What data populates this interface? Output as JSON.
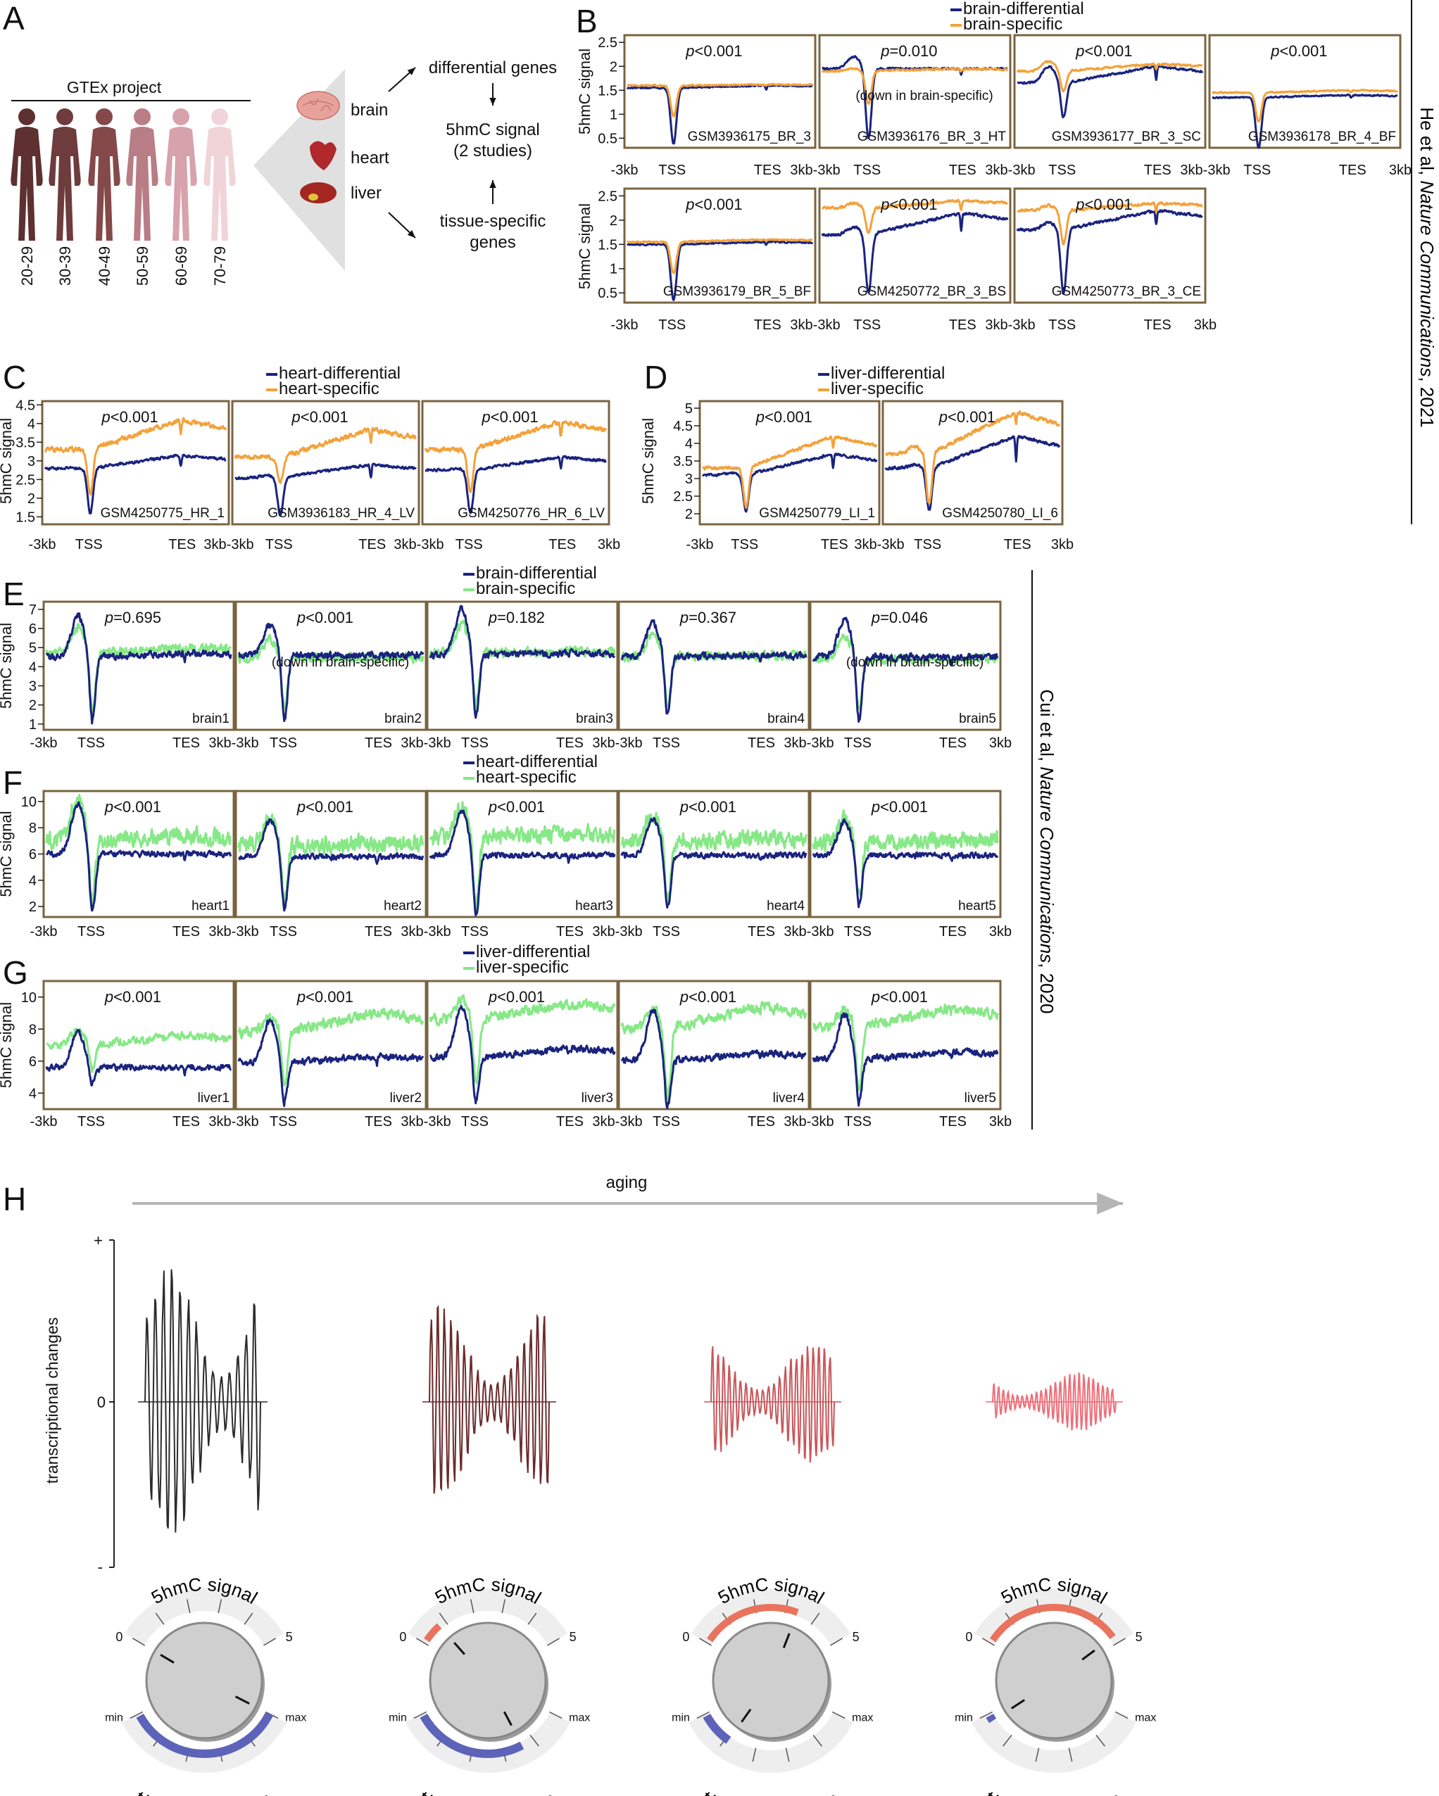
{
  "colors": {
    "panel_border": "#7a6440",
    "blue": "#1a237e",
    "orange": "#f4a13a",
    "green": "#86e886",
    "arrow_gray": "#b5b5b5",
    "dial_gray": "#cfcfcf",
    "dial_red": "#e9735d",
    "dial_blue": "#5c63b8",
    "wave_colors": [
      "#2b2b2b",
      "#6b2a2a",
      "#c9565a",
      "#ef6d78"
    ],
    "human_colors": [
      "#5e3030",
      "#6e3c3c",
      "#854949",
      "#b97d85",
      "#d7a2ab",
      "#f1d4d8"
    ]
  },
  "panel_A": {
    "letter": "A",
    "gtex": "GTEx project",
    "age_groups": [
      "20-29",
      "30-39",
      "40-49",
      "50-59",
      "60-69",
      "70-79"
    ],
    "tissues": [
      "brain",
      "heart",
      "liver"
    ],
    "flow": [
      "differential genes",
      "5hmC signal",
      "(2 studies)",
      "tissue-specific",
      "genes"
    ]
  },
  "pvalue_prefix": "p",
  "down_note": "(down in brain-specific)",
  "ylabel": "5hmC signal",
  "side_labels": {
    "top_normal": "He et al, ",
    "top_italic": "Nature Communications",
    "top_year": ", 2021",
    "bottom_normal": "Cui et al, ",
    "bottom_italic": "Nature Communications",
    "bottom_year": ", 2020"
  },
  "chart_data": [
    {
      "panel": "B",
      "type": "line",
      "study": "He et al, Nature Communications, 2021",
      "series": [
        {
          "name": "brain-differential",
          "color": "#1a237e"
        },
        {
          "name": "brain-specific",
          "color": "#f4a13a"
        }
      ],
      "ylabel": "5hmC signal",
      "x_ticks": [
        "-3kb",
        "TSS",
        "TES",
        "3kb"
      ],
      "y_ticks": [
        2.5,
        2.0,
        1.5,
        1.0,
        0.5
      ],
      "ylim": [
        0.3,
        2.65
      ],
      "samples": [
        {
          "id": "GSM3936175_BR_3",
          "p": "<0.001",
          "diff": {
            "base": 1.55,
            "tssmin": 0.38,
            "peak": 0,
            "slope": 0.05,
            "tes": 0.08,
            "noise": 0.02
          },
          "spec": {
            "base": 1.6,
            "tssmin": 0.95,
            "peak": 0,
            "slope": 0.02,
            "tes": 0.03,
            "noise": 0.02
          }
        },
        {
          "id": "GSM3936176_BR_3_HT",
          "p": "=0.010",
          "note": "(down in brain-specific)",
          "diff": {
            "base": 1.95,
            "tssmin": 0.5,
            "peak": 0.25,
            "slope": 0.0,
            "tes": 0.15,
            "noise": 0.03
          },
          "spec": {
            "base": 1.9,
            "tssmin": 1.2,
            "peak": 0.05,
            "slope": 0.05,
            "tes": 0.05,
            "noise": 0.03
          }
        },
        {
          "id": "GSM3936177_BR_3_SC",
          "p": "<0.001",
          "diff": {
            "base": 1.65,
            "tssmin": 0.95,
            "peak": 0.35,
            "slope": 0.35,
            "tes": 0.3,
            "noise": 0.03
          },
          "spec": {
            "base": 1.9,
            "tssmin": 1.5,
            "peak": 0.2,
            "slope": 0.15,
            "tes": 0.1,
            "noise": 0.03
          }
        },
        {
          "id": "GSM3936178_BR_4_BF",
          "p": "<0.001",
          "diff": {
            "base": 1.35,
            "tssmin": 0.3,
            "peak": 0,
            "slope": 0.05,
            "tes": 0.05,
            "noise": 0.02
          },
          "spec": {
            "base": 1.45,
            "tssmin": 0.85,
            "peak": 0,
            "slope": 0.05,
            "tes": 0.03,
            "noise": 0.02
          }
        },
        {
          "id": "GSM3936179_BR_5_BF",
          "p": "<0.001",
          "diff": {
            "base": 1.5,
            "tssmin": 0.35,
            "peak": 0,
            "slope": 0.05,
            "tes": 0.05,
            "noise": 0.02
          },
          "spec": {
            "base": 1.55,
            "tssmin": 0.9,
            "peak": 0,
            "slope": 0.05,
            "tes": 0.03,
            "noise": 0.02
          }
        },
        {
          "id": "GSM4250772_BR_3_BS",
          "p": "<0.001",
          "diff": {
            "base": 1.7,
            "tssmin": 0.5,
            "peak": 0.15,
            "slope": 0.45,
            "tes": 0.35,
            "noise": 0.04
          },
          "spec": {
            "base": 2.25,
            "tssmin": 1.75,
            "peak": 0.1,
            "slope": 0.15,
            "tes": 0.2,
            "noise": 0.04
          }
        },
        {
          "id": "GSM4250773_BR_3_CE",
          "p": "<0.001",
          "diff": {
            "base": 1.8,
            "tssmin": 0.5,
            "peak": 0.15,
            "slope": 0.4,
            "tes": 0.3,
            "noise": 0.04
          },
          "spec": {
            "base": 2.2,
            "tssmin": 1.5,
            "peak": 0.1,
            "slope": 0.15,
            "tes": 0.2,
            "noise": 0.04
          }
        }
      ]
    },
    {
      "panel": "C",
      "type": "line",
      "study": "He et al, Nature Communications, 2021",
      "series": [
        {
          "name": "heart-differential",
          "color": "#1a237e"
        },
        {
          "name": "heart-specific",
          "color": "#f4a13a"
        }
      ],
      "ylabel": "5hmC signal",
      "x_ticks": [
        "-3kb",
        "TSS",
        "TES",
        "3kb"
      ],
      "y_ticks": [
        4.5,
        4.0,
        3.5,
        3.0,
        2.5,
        2.0,
        1.5
      ],
      "ylim": [
        1.3,
        4.6
      ],
      "samples": [
        {
          "id": "GSM4250775_HR_1",
          "p": "<0.001",
          "diff": {
            "base": 2.8,
            "tssmin": 1.6,
            "peak": 0,
            "slope": 0.35,
            "tes": 0.3,
            "noise": 0.05
          },
          "spec": {
            "base": 3.3,
            "tssmin": 2.1,
            "peak": 0,
            "slope": 0.8,
            "tes": 0.4,
            "noise": 0.09
          }
        },
        {
          "id": "GSM3936183_HR_4_LV",
          "p": "<0.001",
          "diff": {
            "base": 2.55,
            "tssmin": 1.55,
            "peak": 0.05,
            "slope": 0.35,
            "tes": 0.35,
            "noise": 0.05
          },
          "spec": {
            "base": 3.1,
            "tssmin": 2.4,
            "peak": 0,
            "slope": 0.75,
            "tes": 0.35,
            "noise": 0.09
          }
        },
        {
          "id": "GSM4250776_HR_6_LV",
          "p": "<0.001",
          "diff": {
            "base": 2.75,
            "tssmin": 1.6,
            "peak": 0.05,
            "slope": 0.35,
            "tes": 0.3,
            "noise": 0.05
          },
          "spec": {
            "base": 3.3,
            "tssmin": 2.2,
            "peak": 0,
            "slope": 0.75,
            "tes": 0.4,
            "noise": 0.09
          }
        }
      ]
    },
    {
      "panel": "D",
      "type": "line",
      "study": "He et al, Nature Communications, 2021",
      "series": [
        {
          "name": "liver-differential",
          "color": "#1a237e"
        },
        {
          "name": "liver-specific",
          "color": "#f4a13a"
        }
      ],
      "ylabel": "5hmC signal",
      "x_ticks": [
        "-3kb",
        "TSS",
        "TES",
        "3kb"
      ],
      "y_ticks": [
        5.0,
        4.5,
        4.0,
        3.5,
        3.0,
        2.5,
        2.0
      ],
      "ylim": [
        1.7,
        5.2
      ],
      "samples": [
        {
          "id": "GSM4250779_LI_1",
          "p": "<0.001",
          "diff": {
            "base": 3.1,
            "tssmin": 2.1,
            "peak": 0.05,
            "slope": 0.6,
            "tes": 0.4,
            "noise": 0.05
          },
          "spec": {
            "base": 3.3,
            "tssmin": 2.2,
            "peak": 0,
            "slope": 0.9,
            "tes": 0.3,
            "noise": 0.06
          }
        },
        {
          "id": "GSM4250780_LI_6",
          "p": "<0.001",
          "diff": {
            "base": 3.3,
            "tssmin": 2.1,
            "peak": 0.1,
            "slope": 0.9,
            "tes": 0.7,
            "noise": 0.06
          },
          "spec": {
            "base": 3.7,
            "tssmin": 2.3,
            "peak": 0.2,
            "slope": 1.2,
            "tes": 0.4,
            "noise": 0.08
          }
        }
      ]
    },
    {
      "panel": "E",
      "type": "line",
      "study": "Cui et al, Nature Communications, 2020",
      "series": [
        {
          "name": "brain-differential",
          "color": "#1a237e"
        },
        {
          "name": "brain-specific",
          "color": "#86e886"
        }
      ],
      "ylabel": "5hmC signal",
      "x_ticks": [
        "-3kb",
        "TSS",
        "TES",
        "3kb"
      ],
      "y_ticks": [
        7,
        6,
        5,
        4,
        3,
        2,
        1
      ],
      "ylim": [
        0.7,
        7.4
      ],
      "samples": [
        {
          "id": "brain1",
          "p": "=0.695",
          "diff": {
            "base": 4.5,
            "tssmin": 1.3,
            "peak": 2.2,
            "slope": 0.2,
            "tes": 0.3,
            "noise": 0.25
          },
          "spec": {
            "base": 4.7,
            "tssmin": 1.8,
            "peak": 1.4,
            "slope": 0.3,
            "tes": 0.2,
            "noise": 0.35
          }
        },
        {
          "id": "brain2",
          "p": "<0.001",
          "note": "(down in brain-specific)",
          "diff": {
            "base": 4.6,
            "tssmin": 1.3,
            "peak": 1.6,
            "slope": 0,
            "tes": 0.2,
            "noise": 0.25
          },
          "spec": {
            "base": 4.4,
            "tssmin": 1.8,
            "peak": 1.0,
            "slope": 0.1,
            "tes": 0.2,
            "noise": 0.35
          }
        },
        {
          "id": "brain3",
          "p": "=0.182",
          "diff": {
            "base": 4.6,
            "tssmin": 1.5,
            "peak": 2.4,
            "slope": 0.1,
            "tes": 0.2,
            "noise": 0.25
          },
          "spec": {
            "base": 4.7,
            "tssmin": 2.0,
            "peak": 1.5,
            "slope": 0.1,
            "tes": 0.2,
            "noise": 0.35
          }
        },
        {
          "id": "brain4",
          "p": "=0.367",
          "diff": {
            "base": 4.5,
            "tssmin": 1.6,
            "peak": 1.8,
            "slope": 0.1,
            "tes": 0.3,
            "noise": 0.25
          },
          "spec": {
            "base": 4.5,
            "tssmin": 2.0,
            "peak": 1.2,
            "slope": 0.1,
            "tes": 0.2,
            "noise": 0.35
          }
        },
        {
          "id": "brain5",
          "p": "=0.046",
          "note": "(down in brain-specific)",
          "diff": {
            "base": 4.5,
            "tssmin": 1.3,
            "peak": 2.0,
            "slope": 0,
            "tes": 0.3,
            "noise": 0.25
          },
          "spec": {
            "base": 4.4,
            "tssmin": 1.9,
            "peak": 1.2,
            "slope": 0,
            "tes": 0.2,
            "noise": 0.35
          }
        }
      ]
    },
    {
      "panel": "F",
      "type": "line",
      "study": "Cui et al, Nature Communications, 2020",
      "series": [
        {
          "name": "heart-differential",
          "color": "#1a237e"
        },
        {
          "name": "heart-specific",
          "color": "#86e886"
        }
      ],
      "ylabel": "5hmC signal",
      "x_ticks": [
        "-3kb",
        "TSS",
        "TES",
        "3kb"
      ],
      "y_ticks": [
        10,
        8,
        6,
        4,
        2
      ],
      "ylim": [
        1.2,
        10.8
      ],
      "samples": [
        {
          "id": "heart1",
          "p": "<0.001",
          "diff": {
            "base": 6.0,
            "tssmin": 1.8,
            "peak": 3.8,
            "slope": 0,
            "tes": 0.5,
            "noise": 0.3
          },
          "spec": {
            "base": 7.0,
            "tssmin": 2.6,
            "peak": 3.2,
            "slope": 0.4,
            "tes": 0.3,
            "noise": 0.9
          }
        },
        {
          "id": "heart2",
          "p": "<0.001",
          "diff": {
            "base": 5.8,
            "tssmin": 2.0,
            "peak": 2.8,
            "slope": 0,
            "tes": 0.5,
            "noise": 0.3
          },
          "spec": {
            "base": 6.6,
            "tssmin": 2.8,
            "peak": 2.2,
            "slope": 0.3,
            "tes": 0.3,
            "noise": 0.9
          }
        },
        {
          "id": "heart3",
          "p": "<0.001",
          "diff": {
            "base": 5.9,
            "tssmin": 1.6,
            "peak": 3.4,
            "slope": 0,
            "tes": 0.5,
            "noise": 0.3
          },
          "spec": {
            "base": 7.2,
            "tssmin": 2.4,
            "peak": 2.6,
            "slope": 0.4,
            "tes": 0.3,
            "noise": 0.9
          }
        },
        {
          "id": "heart4",
          "p": "<0.001",
          "diff": {
            "base": 5.9,
            "tssmin": 1.9,
            "peak": 2.8,
            "slope": 0,
            "tes": 0.5,
            "noise": 0.3
          },
          "spec": {
            "base": 6.9,
            "tssmin": 2.6,
            "peak": 2.2,
            "slope": 0.3,
            "tes": 0.3,
            "noise": 0.9
          }
        },
        {
          "id": "heart5",
          "p": "<0.001",
          "diff": {
            "base": 5.9,
            "tssmin": 2.2,
            "peak": 2.6,
            "slope": 0,
            "tes": 0.5,
            "noise": 0.3
          },
          "spec": {
            "base": 6.8,
            "tssmin": 2.8,
            "peak": 1.8,
            "slope": 0.3,
            "tes": 0.3,
            "noise": 0.9
          }
        }
      ]
    },
    {
      "panel": "G",
      "type": "line",
      "study": "Cui et al, Nature Communications, 2020",
      "series": [
        {
          "name": "liver-differential",
          "color": "#1a237e"
        },
        {
          "name": "liver-specific",
          "color": "#86e886"
        }
      ],
      "ylabel": "5hmC signal",
      "x_ticks": [
        "-3kb",
        "TSS",
        "TES",
        "3kb"
      ],
      "y_ticks": [
        10,
        8,
        6,
        4
      ],
      "ylim": [
        3.0,
        11.0
      ],
      "samples": [
        {
          "id": "liver1",
          "p": "<0.001",
          "diff": {
            "base": 5.6,
            "tssmin": 4.6,
            "peak": 2.2,
            "slope": 0,
            "tes": 0.4,
            "noise": 0.25
          },
          "spec": {
            "base": 7.0,
            "tssmin": 5.4,
            "peak": 1.0,
            "slope": 0.6,
            "tes": 0.3,
            "noise": 0.35
          }
        },
        {
          "id": "liver2",
          "p": "<0.001",
          "diff": {
            "base": 5.9,
            "tssmin": 3.6,
            "peak": 2.6,
            "slope": 0.4,
            "tes": 0.4,
            "noise": 0.3
          },
          "spec": {
            "base": 7.8,
            "tssmin": 4.4,
            "peak": 1.0,
            "slope": 1.2,
            "tes": 0.3,
            "noise": 0.45
          }
        },
        {
          "id": "liver3",
          "p": "<0.001",
          "diff": {
            "base": 6.2,
            "tssmin": 3.6,
            "peak": 3.2,
            "slope": 0.6,
            "tes": 0.4,
            "noise": 0.3
          },
          "spec": {
            "base": 8.6,
            "tssmin": 4.6,
            "peak": 1.2,
            "slope": 1.0,
            "tes": 0.3,
            "noise": 0.45
          }
        },
        {
          "id": "liver4",
          "p": "<0.001",
          "diff": {
            "base": 6.0,
            "tssmin": 3.2,
            "peak": 3.2,
            "slope": 0.5,
            "tes": 0.4,
            "noise": 0.3
          },
          "spec": {
            "base": 8.0,
            "tssmin": 3.6,
            "peak": 1.2,
            "slope": 1.4,
            "tes": 0.3,
            "noise": 0.45
          }
        },
        {
          "id": "liver5",
          "p": "<0.001",
          "diff": {
            "base": 6.1,
            "tssmin": 3.6,
            "peak": 2.8,
            "slope": 0.5,
            "tes": 0.4,
            "noise": 0.3
          },
          "spec": {
            "base": 8.1,
            "tssmin": 4.2,
            "peak": 1.2,
            "slope": 1.2,
            "tes": 0.3,
            "noise": 0.45
          }
        }
      ]
    }
  ],
  "panel_H": {
    "letter": "H",
    "arrow_label": "aging",
    "ylabel": "transcriptional changes",
    "y_ticks": [
      "+",
      "0",
      "-"
    ],
    "wave_amplitudes": [
      1.0,
      0.7,
      0.46,
      0.22
    ],
    "wave_colors": [
      "#2b2b2b",
      "#6b2a2a",
      "#c9565a",
      "#ef6d78"
    ],
    "dials": [
      {
        "top_label": "5hmC signal",
        "bottom_label": "tissue function",
        "scale_min": "0",
        "scale_max": "5",
        "func_min": "min",
        "func_max": "max",
        "hmc_level": 0.0,
        "function_level": 1.0
      },
      {
        "top_label": "5hmC signal",
        "bottom_label": "tissue function",
        "scale_min": "0",
        "scale_max": "5",
        "func_min": "min",
        "func_max": "max",
        "hmc_level": 0.15,
        "function_level": 0.72
      },
      {
        "top_label": "5hmC signal",
        "bottom_label": "tissue function",
        "scale_min": "0",
        "scale_max": "5",
        "func_min": "min",
        "func_max": "max",
        "hmc_level": 0.68,
        "function_level": 0.22
      },
      {
        "top_label": "5hmC signal",
        "bottom_label": "tissue function",
        "scale_min": "0",
        "scale_max": "5",
        "func_min": "min",
        "func_max": "max",
        "hmc_level": 0.95,
        "function_level": 0.05
      }
    ]
  }
}
